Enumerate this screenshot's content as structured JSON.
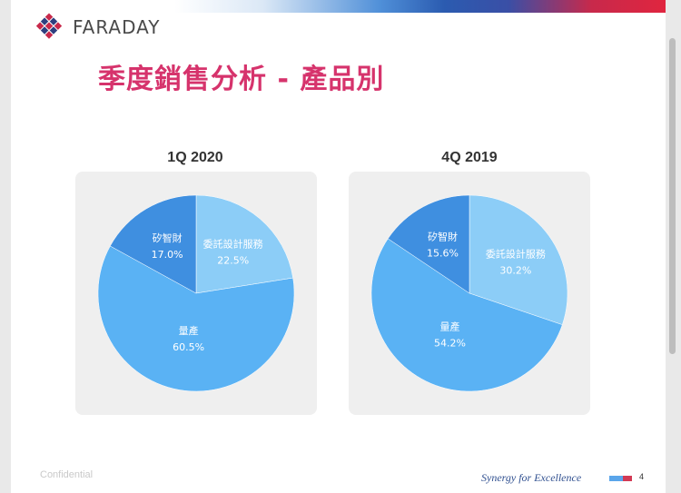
{
  "header": {
    "logo_text": "FARADAY",
    "title": "季度銷售分析 - 產品別"
  },
  "colors": {
    "title": "#d6336c",
    "slice_consign": "#8ccdf7",
    "slice_ip": "#3f8fe0",
    "slice_volume": "#5ab2f4"
  },
  "chart_data": [
    {
      "type": "pie",
      "title": "1Q 2020",
      "slices": [
        {
          "label": "委託設計服務",
          "value": 22.5,
          "display": "22.5%"
        },
        {
          "label": "量產",
          "value": 60.5,
          "display": "60.5%"
        },
        {
          "label": "矽智財",
          "value": 17.0,
          "display": "17.0%"
        }
      ]
    },
    {
      "type": "pie",
      "title": "4Q 2019",
      "slices": [
        {
          "label": "委託設計服務",
          "value": 30.2,
          "display": "30.2%"
        },
        {
          "label": "量產",
          "value": 54.2,
          "display": "54.2%"
        },
        {
          "label": "矽智財",
          "value": 15.6,
          "display": "15.6%"
        }
      ]
    }
  ],
  "footer": {
    "confidential": "Confidential",
    "slogan": "Synergy for Excellence",
    "page": "4"
  }
}
